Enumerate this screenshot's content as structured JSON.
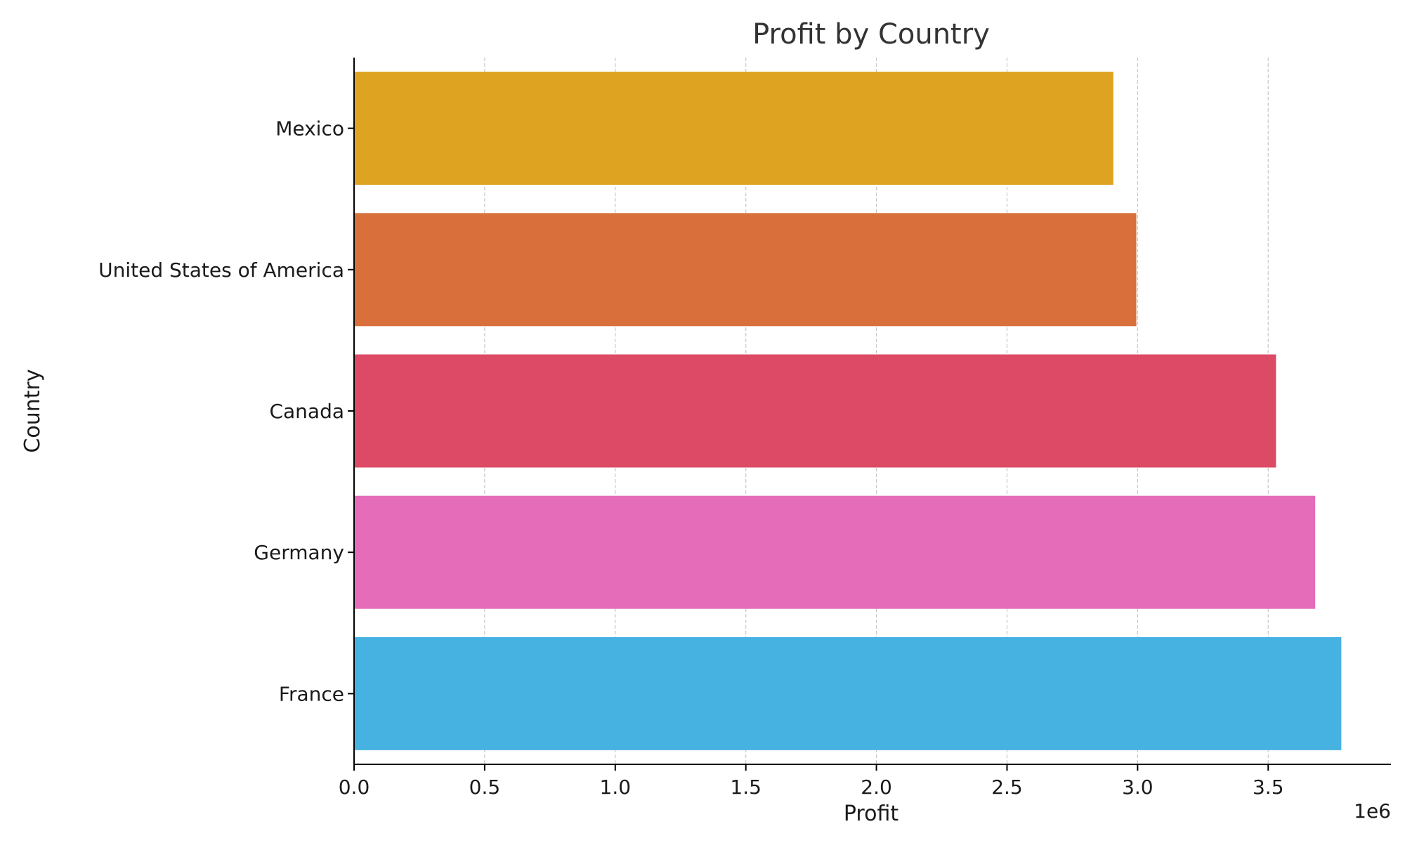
{
  "chart_data": {
    "type": "bar",
    "orientation": "horizontal",
    "title": "Profit by Country",
    "xlabel": "Profit",
    "ylabel": "Country",
    "x_offset_label": "1e6",
    "xlim": [
      0,
      3970000
    ],
    "x_ticks": [
      0,
      500000,
      1000000,
      1500000,
      2000000,
      2500000,
      3000000,
      3500000
    ],
    "x_tick_labels": [
      "0.0",
      "0.5",
      "1.0",
      "1.5",
      "2.0",
      "2.5",
      "3.0",
      "3.5"
    ],
    "grid": "vertical dashed",
    "categories": [
      "Mexico",
      "United States of America",
      "Canada",
      "Germany",
      "France"
    ],
    "values": [
      2907000,
      2995000,
      3530000,
      3680000,
      3780000
    ],
    "colors": [
      "#DEA321",
      "#D9703B",
      "#DC4A66",
      "#E46CB9",
      "#45B2E2"
    ]
  }
}
